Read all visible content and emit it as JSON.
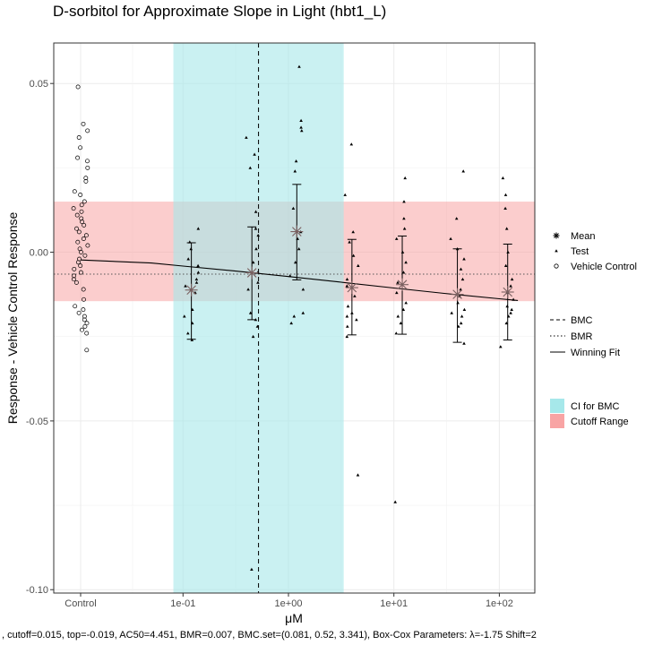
{
  "chart_data": {
    "type": "scatter",
    "title": "D-sorbitol for Approximate Slope in Light (hbt1_L)",
    "xlabel": "μM",
    "ylabel": "Response - Vehicle Control Response",
    "footer": ", cutoff=0.015, top=-0.019, AC50=4.451, BMR=0.007, BMC.set=(0.081, 0.52, 3.341), Box-Cox Parameters: λ=-1.75 Shift=2",
    "x_scale": "log10",
    "x_ticks": [
      "Control",
      "1e-01",
      "1e+00",
      "1e+01",
      "1e+02"
    ],
    "y_ticks": [
      "0.05",
      "0.00",
      "-0.05",
      "-0.10"
    ],
    "ylim": [
      -0.101,
      0.062
    ],
    "grid": true,
    "legend_position": "right",
    "legend": {
      "points": [
        "Mean",
        "Test",
        "Vehicle Control"
      ],
      "lines": [
        "BMC",
        "BMR",
        "Winning Fit"
      ],
      "fills": [
        "CI for BMC",
        "Cutoff Range"
      ]
    },
    "colors": {
      "ci_fill": "#a6e8ea",
      "cutoff_fill": "#f8a4a4",
      "mean_marker": "#7a6060"
    },
    "bmc": 0.52,
    "bmc_ci": [
      0.081,
      3.341
    ],
    "bmr": -0.0065,
    "cutoff_range": [
      -0.0145,
      0.015
    ],
    "winning_fit": {
      "x": [
        0.02,
        0.05,
        0.1,
        0.3,
        1,
        3,
        10,
        30,
        100,
        150
      ],
      "y": [
        -0.0023,
        -0.0032,
        -0.0041,
        -0.0055,
        -0.0072,
        -0.0088,
        -0.0106,
        -0.0122,
        -0.0138,
        -0.0143
      ]
    },
    "vehicle_control": [
      0.049,
      0.038,
      0.036,
      0.034,
      0.031,
      0.028,
      0.027,
      0.025,
      0.022,
      0.021,
      0.018,
      0.017,
      0.015,
      0.014,
      0.013,
      0.012,
      0.011,
      0.01,
      0.009,
      0.008,
      0.007,
      0.006,
      0.005,
      0.004,
      0.003,
      0.002,
      0.001,
      0.0,
      -0.001,
      -0.002,
      -0.003,
      -0.004,
      -0.005,
      -0.006,
      -0.007,
      -0.008,
      -0.009,
      -0.011,
      -0.014,
      -0.016,
      -0.017,
      -0.018,
      -0.019,
      -0.02,
      -0.021,
      -0.022,
      -0.023,
      -0.024,
      -0.029
    ],
    "test_groups": [
      {
        "x": 0.12,
        "mean": -0.0112,
        "sd_low": -0.0258,
        "sd_high": 0.0028,
        "points": [
          0.007,
          0.003,
          0.001,
          -0.002,
          -0.004,
          -0.006,
          -0.008,
          -0.009,
          -0.01,
          -0.011,
          -0.012,
          -0.017,
          -0.019,
          -0.021,
          -0.024,
          -0.026
        ]
      },
      {
        "x": 0.45,
        "mean": -0.0061,
        "sd_low": -0.02,
        "sd_high": 0.0075,
        "points": [
          0.034,
          0.029,
          0.025,
          0.012,
          0.007,
          0.005,
          0.001,
          -0.003,
          -0.006,
          -0.009,
          -0.011,
          -0.018,
          -0.02,
          -0.022,
          -0.025,
          -0.094
        ]
      },
      {
        "x": 1.2,
        "mean": 0.0061,
        "sd_low": -0.0082,
        "sd_high": 0.0201,
        "points": [
          0.055,
          0.039,
          0.037,
          0.036,
          0.027,
          0.024,
          0.013,
          0.006,
          0.004,
          0.001,
          -0.003,
          -0.007,
          -0.011,
          -0.018,
          -0.019,
          -0.021
        ]
      },
      {
        "x": 4.0,
        "mean": -0.0105,
        "sd_low": -0.0245,
        "sd_high": 0.0038,
        "points": [
          0.032,
          0.017,
          0.006,
          0.003,
          -0.001,
          -0.004,
          -0.008,
          -0.01,
          -0.013,
          -0.016,
          -0.018,
          -0.019,
          -0.02,
          -0.022,
          -0.025,
          -0.066
        ]
      },
      {
        "x": 12.0,
        "mean": -0.0096,
        "sd_low": -0.0243,
        "sd_high": 0.0048,
        "points": [
          0.022,
          0.015,
          0.01,
          0.007,
          0.004,
          0.0,
          -0.003,
          -0.006,
          -0.009,
          -0.012,
          -0.015,
          -0.017,
          -0.019,
          -0.021,
          -0.024,
          -0.074
        ]
      },
      {
        "x": 40.0,
        "mean": -0.0125,
        "sd_low": -0.0267,
        "sd_high": 0.001,
        "points": [
          0.024,
          0.01,
          0.004,
          0.001,
          -0.002,
          -0.005,
          -0.008,
          -0.011,
          -0.013,
          -0.015,
          -0.017,
          -0.018,
          -0.019,
          -0.021,
          -0.022,
          -0.027
        ]
      },
      {
        "x": 120.0,
        "mean": -0.0118,
        "sd_low": -0.026,
        "sd_high": 0.0024,
        "points": [
          0.022,
          0.017,
          0.013,
          0.007,
          0.0,
          -0.004,
          -0.008,
          -0.01,
          -0.012,
          -0.014,
          -0.016,
          -0.017,
          -0.018,
          -0.019,
          -0.021,
          -0.028
        ]
      }
    ]
  }
}
